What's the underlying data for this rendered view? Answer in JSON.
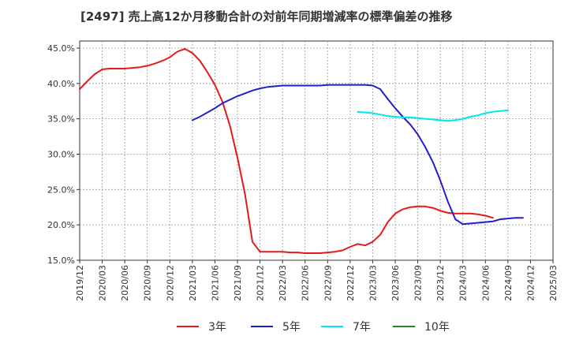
{
  "chart_data": {
    "type": "line",
    "title": "[2497]  売上高12か月移動合計の対前年同期増減率の標準偏差の推移",
    "xlabel": "",
    "ylabel": "",
    "ylim": [
      15,
      46
    ],
    "y_ticks": [
      15,
      20,
      25,
      30,
      35,
      40,
      45
    ],
    "y_tick_labels": [
      "15.0%",
      "20.0%",
      "25.0%",
      "30.0%",
      "35.0%",
      "40.0%",
      "45.0%"
    ],
    "x_range": [
      "2019/12",
      "2025/03"
    ],
    "x_tick_labels": [
      "2019/12",
      "2020/03",
      "2020/06",
      "2020/09",
      "2020/12",
      "2021/03",
      "2021/06",
      "2021/09",
      "2021/12",
      "2022/03",
      "2022/06",
      "2022/09",
      "2022/12",
      "2023/03",
      "2023/06",
      "2023/09",
      "2023/12",
      "2024/03",
      "2024/06",
      "2024/09",
      "2024/12",
      "2025/03"
    ],
    "grid": true,
    "legend_position": "bottom",
    "series": [
      {
        "name": "3年",
        "color": "#e31a1c",
        "start": "2019/12",
        "values": [
          39.2,
          40.3,
          41.3,
          42.0,
          42.1,
          42.1,
          42.1,
          42.2,
          42.3,
          42.5,
          42.8,
          43.2,
          43.7,
          44.5,
          44.9,
          44.3,
          43.2,
          41.6,
          39.8,
          37.4,
          34.0,
          29.5,
          24.4,
          17.6,
          16.2,
          16.2,
          16.2,
          16.2,
          16.1,
          16.1,
          16.0,
          16.0,
          16.0,
          16.1,
          16.2,
          16.4,
          16.9,
          17.3,
          17.1,
          17.6,
          18.6,
          20.4,
          21.6,
          22.2,
          22.5,
          22.6,
          22.6,
          22.4,
          22.0,
          21.7,
          21.6,
          21.6,
          21.6,
          21.5,
          21.3,
          21.0
        ]
      },
      {
        "name": "5年",
        "color": "#1f1fcc",
        "start": "2021/03",
        "values": [
          34.8,
          35.3,
          35.9,
          36.5,
          37.2,
          37.7,
          38.2,
          38.6,
          39.0,
          39.3,
          39.5,
          39.6,
          39.7,
          39.7,
          39.7,
          39.7,
          39.7,
          39.7,
          39.8,
          39.8,
          39.8,
          39.8,
          39.8,
          39.8,
          39.7,
          39.2,
          37.8,
          36.5,
          35.3,
          34.2,
          32.8,
          31.0,
          28.9,
          26.3,
          23.3,
          20.8,
          20.1,
          20.2,
          20.3,
          20.4,
          20.5,
          20.8,
          20.9,
          21.0,
          21.0
        ]
      },
      {
        "name": "7年",
        "color": "#00e5ee",
        "start": "2023/01",
        "values": [
          36.0,
          35.9,
          35.8,
          35.6,
          35.4,
          35.3,
          35.2,
          35.2,
          35.1,
          35.0,
          34.9,
          34.8,
          34.7,
          34.8,
          35.0,
          35.3,
          35.5,
          35.8,
          36.0,
          36.1,
          36.2
        ]
      },
      {
        "name": "10年",
        "color": "#228b22",
        "start": "2024/12",
        "values": []
      }
    ]
  }
}
